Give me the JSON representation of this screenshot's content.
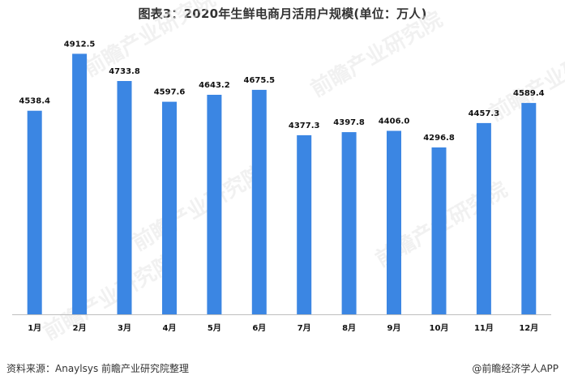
{
  "title": "图表3：2020年生鲜电商月活用户规模(单位：万人)",
  "source": "资料来源：Anaylsys 前瞻产业研究院整理",
  "credit": "@前瞻经济学人APP",
  "watermark": "前瞻产业研究院",
  "colors": {
    "bar": "#3b86e3",
    "axis": "#bfbfbf"
  },
  "chart_data": {
    "type": "bar",
    "title": "图表3：2020年生鲜电商月活用户规模(单位：万人)",
    "categories": [
      "1月",
      "2月",
      "3月",
      "4月",
      "5月",
      "6月",
      "7月",
      "8月",
      "9月",
      "10月",
      "11月",
      "12月"
    ],
    "values": [
      4538.4,
      4912.5,
      4733.8,
      4597.6,
      4643.2,
      4675.5,
      4377.3,
      4397.8,
      4406.0,
      4296.8,
      4457.3,
      4589.4
    ],
    "ylim": [
      3200,
      5000
    ],
    "grid": false,
    "legend": "none"
  }
}
